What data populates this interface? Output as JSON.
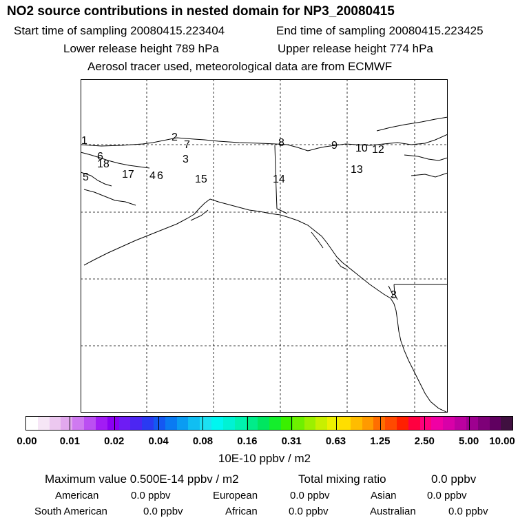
{
  "header": {
    "title": "NO2 source contributions in nested domain for NP3_20080415",
    "start_label": "Start time of sampling 20080415.223404",
    "end_label": "End time of sampling 20080415.223425",
    "lower_label": "Lower release height  789 hPa",
    "upper_label": "Upper release height  774 hPa",
    "tracer_note": "Aerosol tracer used, meteorological data are from ECMWF"
  },
  "map": {
    "labels": [
      "1",
      "2",
      "7",
      "3",
      "8",
      "9",
      "10",
      "12",
      "6",
      "18",
      "17",
      "4",
      "6",
      "5",
      "15",
      "14",
      "13",
      "3"
    ]
  },
  "colorbar": {
    "colors": [
      "#ffffff",
      "#f6e6f6",
      "#ecc8f0",
      "#e2a8ee",
      "#cf7af0",
      "#bb4ff2",
      "#a21cf4",
      "#8a00f2",
      "#6e1cf4",
      "#4c26f2",
      "#2a3af2",
      "#1458f2",
      "#0a7af2",
      "#0a9cf2",
      "#10bef2",
      "#1ce0f2",
      "#00f6f0",
      "#00f2d4",
      "#00f2b0",
      "#00ec8a",
      "#00e660",
      "#14ee2c",
      "#3af000",
      "#6ef000",
      "#9cf000",
      "#c8f000",
      "#eef000",
      "#ffde00",
      "#ffbc00",
      "#ff9a00",
      "#ff6e00",
      "#ff4a00",
      "#ff2000",
      "#ff0040",
      "#ff007c",
      "#f000a4",
      "#d800a8",
      "#bc00a0",
      "#9e0090",
      "#7e0078",
      "#600060",
      "#401040"
    ],
    "ticks": [
      "0.00",
      "0.01",
      "0.02",
      "0.04",
      "0.08",
      "0.16",
      "0.31",
      "0.63",
      "1.25",
      "2.50",
      "5.00",
      "10.00"
    ],
    "unit": "10E-10 ppbv / m2"
  },
  "footer": {
    "max_value": "Maximum value  0.500E-14 ppbv / m2",
    "total_label": "Total mixing ratio",
    "total_value": "0.0 ppbv",
    "american_label": "American",
    "american_value": "0.0 ppbv",
    "european_label": "European",
    "european_value": "0.0 ppbv",
    "asian_label": "Asian",
    "asian_value": "0.0 ppbv",
    "south_american_label": "South American",
    "south_american_value": "0.0 ppbv",
    "african_label": "African",
    "african_value": "0.0 ppbv",
    "australian_label": "Australian",
    "australian_value": "0.0 ppbv"
  }
}
